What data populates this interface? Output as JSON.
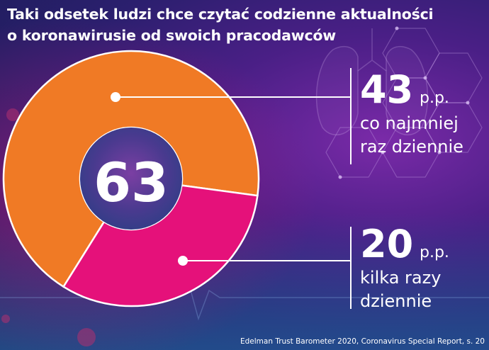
{
  "title": {
    "line1": "Taki odsetek ludzi chce czytać codzienne aktualności",
    "line2": "o koronawirusie od swoich pracodawców"
  },
  "chart_data": {
    "type": "pie",
    "center_label": "63",
    "slices": [
      {
        "value": 43,
        "unit": "p.p.",
        "label_lines": [
          "co najmniej",
          "raz dziennie"
        ],
        "color": "#f07a25"
      },
      {
        "value": 20,
        "unit": "p.p.",
        "label_lines": [
          "kilka razy",
          "dziennie"
        ],
        "color": "#e5117a"
      }
    ],
    "remainder_color": "transparent"
  },
  "source": "Edelman Trust Barometer 2020, Coronavirus Special Report, s. 20"
}
